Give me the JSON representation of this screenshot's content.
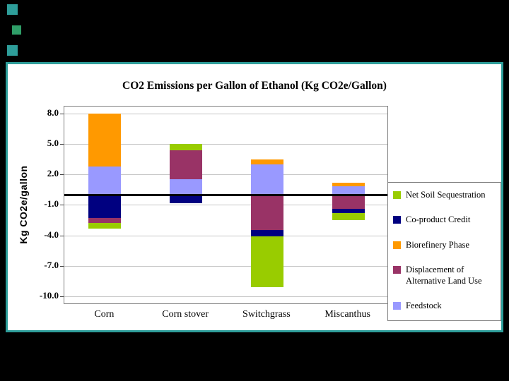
{
  "colors": {
    "page_background": "#000000",
    "slide_background": "#FFFFFF",
    "slide_border": "#2E9E9A",
    "decor_square_1": "#2E9E9A",
    "decor_square_2": "#2F9E68",
    "decor_square_3": "#2E9E9A",
    "gridline": "#C6C6C6",
    "plot_border": "#808080",
    "zero_line": "#000000"
  },
  "chart_data": {
    "type": "bar",
    "subtype": "stacked column with positive and negative segments",
    "title": "CO2 Emissions per Gallon of Ethanol (Kg CO2e/Gallon)",
    "ylabel": "Kg CO2e/gallon",
    "xlabel": "",
    "ylim": [
      -10.8,
      8.7
    ],
    "yticks": [
      8.0,
      5.0,
      2.0,
      -1.0,
      -4.0,
      -7.0,
      -10.0
    ],
    "grid": "horizontal gridlines on",
    "legend_position": "right",
    "zero_baseline": 0,
    "categories": [
      "Corn",
      "Corn stover",
      "Switchgrass",
      "Miscanthus"
    ],
    "series": [
      {
        "name": "Net Soil Sequestration",
        "color": "#99CC00",
        "values": [
          -0.5,
          0.6,
          -5.0,
          -0.7
        ]
      },
      {
        "name": "Co-product Credit",
        "color": "#000080",
        "values": [
          -2.3,
          -0.8,
          -0.6,
          -0.4
        ]
      },
      {
        "name": "Biorefinery Phase",
        "color": "#FF9900",
        "values": [
          5.2,
          0.0,
          0.5,
          0.4
        ]
      },
      {
        "name": "Displacement of Alternative Land Use",
        "color": "#993366",
        "values": [
          -0.5,
          2.9,
          -3.5,
          -1.4
        ]
      },
      {
        "name": "Feedstock",
        "color": "#9999FF",
        "values": [
          2.8,
          1.5,
          3.0,
          0.8
        ]
      }
    ],
    "bars": [
      {
        "category": "Corn",
        "positive": [
          {
            "series": "Feedstock",
            "value": 2.8
          },
          {
            "series": "Biorefinery Phase",
            "value": 5.2
          }
        ],
        "negative": [
          {
            "series": "Co-product Credit",
            "value": -2.3
          },
          {
            "series": "Displacement of Alternative Land Use",
            "value": -0.5
          },
          {
            "series": "Net Soil Sequestration",
            "value": -0.5
          }
        ]
      },
      {
        "category": "Corn stover",
        "positive": [
          {
            "series": "Feedstock",
            "value": 1.5
          },
          {
            "series": "Displacement of Alternative Land Use",
            "value": 2.9
          },
          {
            "series": "Net Soil Sequestration",
            "value": 0.6
          }
        ],
        "negative": [
          {
            "series": "Co-product Credit",
            "value": -0.8
          }
        ]
      },
      {
        "category": "Switchgrass",
        "positive": [
          {
            "series": "Feedstock",
            "value": 3.0
          },
          {
            "series": "Biorefinery Phase",
            "value": 0.5
          }
        ],
        "negative": [
          {
            "series": "Displacement of Alternative Land Use",
            "value": -3.5
          },
          {
            "series": "Co-product Credit",
            "value": -0.6
          },
          {
            "series": "Net Soil Sequestration",
            "value": -5.0
          }
        ]
      },
      {
        "category": "Miscanthus",
        "positive": [
          {
            "series": "Feedstock",
            "value": 0.8
          },
          {
            "series": "Biorefinery Phase",
            "value": 0.4
          }
        ],
        "negative": [
          {
            "series": "Displacement of Alternative Land Use",
            "value": -1.4
          },
          {
            "series": "Co-product Credit",
            "value": -0.4
          },
          {
            "series": "Net Soil Sequestration",
            "value": -0.7
          }
        ]
      }
    ],
    "legend": [
      {
        "series": "Net Soil Sequestration",
        "label": "Net Soil Sequestration",
        "color": "#99CC00"
      },
      {
        "series": "Co-product Credit",
        "label": "Co-product Credit",
        "color": "#000080"
      },
      {
        "series": "Biorefinery Phase",
        "label": "Biorefinery Phase",
        "color": "#FF9900"
      },
      {
        "series": "Displacement of Alternative Land Use",
        "label": "Displacement of\nAlternative Land Use",
        "color": "#993366"
      },
      {
        "series": "Feedstock",
        "label": "Feedstock",
        "color": "#9999FF"
      }
    ]
  }
}
